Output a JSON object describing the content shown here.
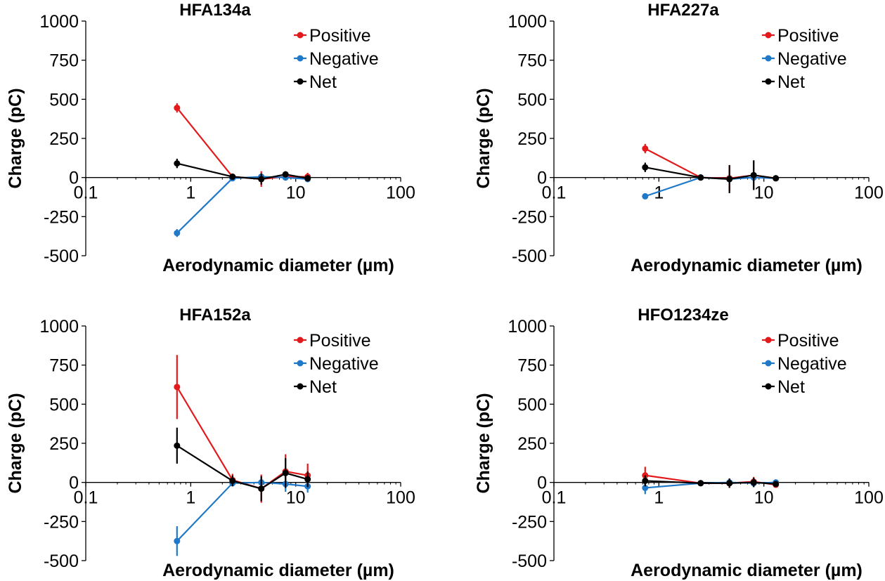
{
  "colors": {
    "Positive": "#e31a1c",
    "Negative": "#1f78c8",
    "Net": "#000000"
  },
  "chart_data": [
    {
      "type": "line",
      "title": "HFA134a",
      "xlabel": "Aerodynamic diameter (µm)",
      "ylabel": "Charge (pC)",
      "xscale": "log",
      "xlim": [
        0.1,
        100
      ],
      "ylim": [
        -500,
        1000
      ],
      "xticks": [
        "0.1",
        "1",
        "10",
        "100"
      ],
      "yticks": [
        "1000",
        "750",
        "500",
        "250",
        "0",
        "-250",
        "-500"
      ],
      "x": [
        0.74,
        2.5,
        4.7,
        8.0,
        13.0
      ],
      "legend": "top-right",
      "series": [
        {
          "name": "Positive",
          "values": [
            445,
            5,
            -10,
            5,
            5
          ],
          "err": [
            30,
            15,
            50,
            25,
            25
          ]
        },
        {
          "name": "Negative",
          "values": [
            -355,
            -5,
            5,
            0,
            -10
          ],
          "err": [
            25,
            10,
            20,
            15,
            20
          ]
        },
        {
          "name": "Net",
          "values": [
            90,
            5,
            -10,
            20,
            -5
          ],
          "err": [
            30,
            15,
            35,
            20,
            20
          ]
        }
      ]
    },
    {
      "type": "line",
      "title": "HFA227a",
      "xlabel": "Aerodynamic diameter (µm)",
      "ylabel": "Charge (pC)",
      "xscale": "log",
      "xlim": [
        0.1,
        100
      ],
      "ylim": [
        -500,
        1000
      ],
      "xticks": [
        "0.1",
        "1",
        "10",
        "100"
      ],
      "yticks": [
        "1000",
        "750",
        "500",
        "250",
        "0",
        "-250",
        "-500"
      ],
      "x": [
        0.74,
        2.5,
        4.7,
        8.0,
        13.0
      ],
      "legend": "top-right",
      "series": [
        {
          "name": "Positive",
          "values": [
            185,
            0,
            -5,
            15,
            -5
          ],
          "err": [
            30,
            10,
            80,
            90,
            15
          ]
        },
        {
          "name": "Negative",
          "values": [
            -120,
            0,
            -10,
            0,
            -5
          ],
          "err": [
            10,
            10,
            30,
            20,
            10
          ]
        },
        {
          "name": "Net",
          "values": [
            65,
            0,
            -10,
            15,
            -5
          ],
          "err": [
            30,
            10,
            90,
            95,
            15
          ]
        }
      ]
    },
    {
      "type": "line",
      "title": "HFA152a",
      "xlabel": "Aerodynamic diameter (µm)",
      "ylabel": "Charge (pC)",
      "xscale": "log",
      "xlim": [
        0.1,
        100
      ],
      "ylim": [
        -500,
        1000
      ],
      "xticks": [
        "0.1",
        "1",
        "10",
        "100"
      ],
      "yticks": [
        "1000",
        "750",
        "500",
        "250",
        "0",
        "-250",
        "-500"
      ],
      "x": [
        0.74,
        2.5,
        4.7,
        8.0,
        13.0
      ],
      "legend": "top-right",
      "series": [
        {
          "name": "Positive",
          "values": [
            610,
            15,
            -40,
            70,
            45
          ],
          "err": [
            205,
            40,
            90,
            110,
            75
          ]
        },
        {
          "name": "Negative",
          "values": [
            -375,
            -5,
            0,
            -10,
            -25
          ],
          "err": [
            95,
            15,
            30,
            50,
            40
          ]
        },
        {
          "name": "Net",
          "values": [
            235,
            10,
            -40,
            60,
            20
          ],
          "err": [
            115,
            35,
            80,
            95,
            50
          ]
        }
      ]
    },
    {
      "type": "line",
      "title": "HFO1234ze",
      "xlabel": "Aerodynamic diameter (µm)",
      "ylabel": "Charge (pC)",
      "xscale": "log",
      "xlim": [
        0.1,
        100
      ],
      "ylim": [
        -500,
        1000
      ],
      "xticks": [
        "0.1",
        "1",
        "10",
        "100"
      ],
      "yticks": [
        "1000",
        "750",
        "500",
        "250",
        "0",
        "-250",
        "-500"
      ],
      "x": [
        0.74,
        2.5,
        4.7,
        8.0,
        13.0
      ],
      "legend": "top-right",
      "series": [
        {
          "name": "Positive",
          "values": [
            45,
            -5,
            -5,
            5,
            -15
          ],
          "err": [
            55,
            10,
            30,
            30,
            15
          ]
        },
        {
          "name": "Negative",
          "values": [
            -35,
            -5,
            0,
            -5,
            0
          ],
          "err": [
            40,
            10,
            25,
            25,
            10
          ]
        },
        {
          "name": "Net",
          "values": [
            10,
            -5,
            -5,
            0,
            -10
          ],
          "err": [
            35,
            10,
            30,
            30,
            15
          ]
        }
      ]
    }
  ]
}
